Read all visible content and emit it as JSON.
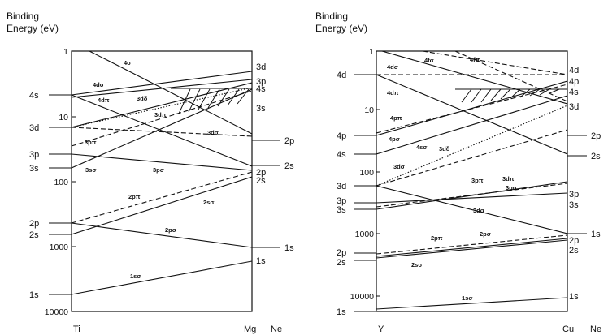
{
  "panels": [
    {
      "title_line1": "Binding",
      "title_line2": "Energy (eV)",
      "y_ticks": [
        "1",
        "10",
        "100",
        "1000",
        "10000"
      ],
      "left_atom": "Ti",
      "right_atom": "Mg",
      "extra_atom": "Ne",
      "left_levels": [
        "4s",
        "3d",
        "3p",
        "3s",
        "2p",
        "2s",
        "1s"
      ],
      "right_levels": [
        "3d",
        "3p",
        "4s",
        "3s",
        "2p",
        "2s",
        "2p",
        "2s",
        "1s",
        "1s"
      ],
      "orbital_labels": [
        "4σ",
        "4dσ",
        "4dπ",
        "3dδ",
        "3dπ",
        "3dσ",
        "3pπ",
        "3sσ",
        "3pσ",
        "2pπ",
        "2sσ",
        "2pσ",
        "1sσ"
      ]
    },
    {
      "title_line1": "Binding",
      "title_line2": "Energy (eV)",
      "y_ticks": [
        "1",
        "10",
        "100",
        "1000",
        "10000"
      ],
      "left_atom": "Y",
      "right_atom": "Cu",
      "extra_atom": "Ne",
      "left_levels": [
        "4d",
        "4p",
        "4s",
        "3d",
        "3p",
        "3s",
        "2p",
        "2s",
        "1s"
      ],
      "right_levels": [
        "4d",
        "4p",
        "4s",
        "3d",
        "2p",
        "2s",
        "3p",
        "3s",
        "1s",
        "2p",
        "2s",
        "1s"
      ],
      "orbital_labels": [
        "4dσ",
        "4fσ",
        "4fπ",
        "4dπ",
        "4pπ",
        "4pσ",
        "4sσ",
        "3dδ",
        "3dσ",
        "3pπ",
        "3dπ",
        "3pσ",
        "3dσ",
        "2pπ",
        "2pσ",
        "2sσ",
        "1sσ"
      ]
    }
  ]
}
